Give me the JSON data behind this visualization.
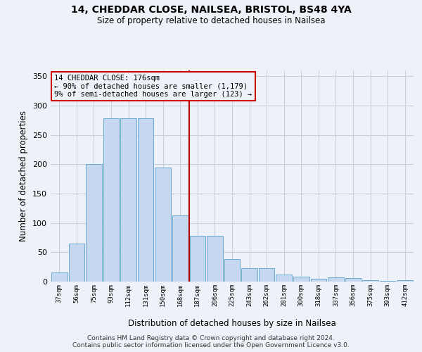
{
  "title1": "14, CHEDDAR CLOSE, NAILSEA, BRISTOL, BS48 4YA",
  "title2": "Size of property relative to detached houses in Nailsea",
  "xlabel": "Distribution of detached houses by size in Nailsea",
  "ylabel": "Number of detached properties",
  "categories": [
    "37sqm",
    "56sqm",
    "75sqm",
    "93sqm",
    "112sqm",
    "131sqm",
    "150sqm",
    "168sqm",
    "187sqm",
    "206sqm",
    "225sqm",
    "243sqm",
    "262sqm",
    "281sqm",
    "300sqm",
    "318sqm",
    "337sqm",
    "356sqm",
    "375sqm",
    "393sqm",
    "412sqm"
  ],
  "values": [
    16,
    65,
    200,
    279,
    279,
    279,
    194,
    113,
    78,
    78,
    39,
    23,
    23,
    12,
    9,
    5,
    7,
    6,
    2,
    1,
    3
  ],
  "bar_color": "#c5d8f0",
  "bar_edge_color": "#6aaad4",
  "grid_color": "#c8d0e0",
  "vline_color": "#aa0000",
  "annotation_box_color": "#cc0000",
  "annotation_text_line1": "14 CHEDDAR CLOSE: 176sqm",
  "annotation_text_line2": "← 90% of detached houses are smaller (1,179)",
  "annotation_text_line3": "9% of semi-detached houses are larger (123) →",
  "ylim": [
    0,
    360
  ],
  "yticks": [
    0,
    50,
    100,
    150,
    200,
    250,
    300,
    350
  ],
  "background_color": "#eef2f8",
  "footnote1": "Contains HM Land Registry data © Crown copyright and database right 2024.",
  "footnote2": "Contains public sector information licensed under the Open Government Licence v3.0."
}
